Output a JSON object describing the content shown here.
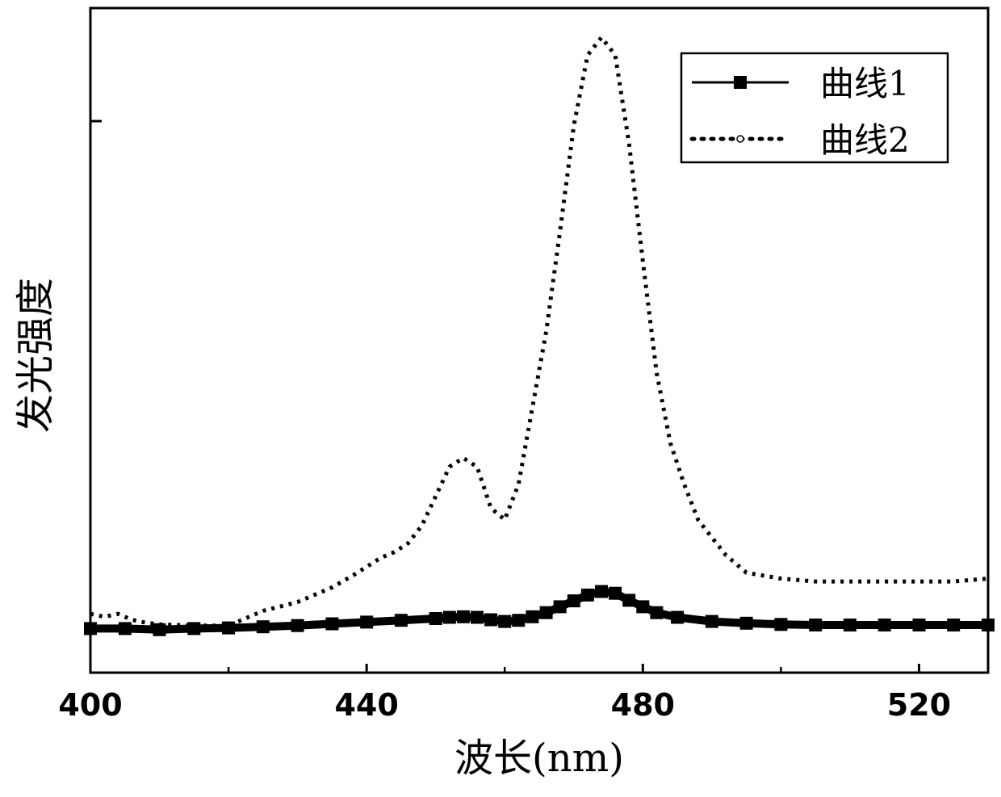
{
  "chart_data": {
    "type": "line",
    "title": "",
    "xlabel": "波长(nm)",
    "ylabel": "发光强度",
    "xlim": [
      400,
      530
    ],
    "ylim": [
      -0.08,
      1.05
    ],
    "x_ticks": [
      400,
      440,
      480,
      520
    ],
    "x_minor_ticks": [
      420,
      460,
      500
    ],
    "y_tick_labels_shown": false,
    "grid": false,
    "legend": {
      "position": "top-right"
    },
    "series": [
      {
        "name": "曲线1",
        "style": "solid line with filled square markers",
        "color": "#000000",
        "x": [
          400,
          405,
          410,
          415,
          420,
          425,
          430,
          435,
          440,
          445,
          450,
          452,
          454,
          456,
          458,
          460,
          462,
          464,
          466,
          468,
          470,
          472,
          474,
          476,
          478,
          480,
          482,
          485,
          490,
          495,
          500,
          505,
          510,
          515,
          520,
          525,
          530
        ],
        "y": [
          -0.005,
          -0.005,
          -0.007,
          -0.005,
          -0.004,
          -0.002,
          0.0,
          0.003,
          0.006,
          0.009,
          0.012,
          0.014,
          0.015,
          0.014,
          0.01,
          0.007,
          0.009,
          0.015,
          0.022,
          0.032,
          0.042,
          0.052,
          0.058,
          0.055,
          0.043,
          0.032,
          0.022,
          0.014,
          0.007,
          0.004,
          0.002,
          0.001,
          0.001,
          0.001,
          0.001,
          0.001,
          0.001
        ]
      },
      {
        "name": "曲线2",
        "style": "dotted line",
        "color": "#000000",
        "x": [
          400,
          402,
          404,
          406,
          408,
          410,
          415,
          420,
          422,
          425,
          430,
          435,
          438,
          440,
          442,
          444,
          446,
          448,
          450,
          452,
          454,
          456,
          458,
          460,
          462,
          464,
          466,
          468,
          470,
          472,
          474,
          476,
          478,
          480,
          482,
          484,
          486,
          488,
          490,
          492,
          495,
          500,
          505,
          510,
          515,
          520,
          525,
          530
        ],
        "y": [
          0.02,
          0.015,
          0.02,
          0.01,
          0.005,
          0.002,
          0.0,
          0.0,
          0.01,
          0.025,
          0.04,
          0.065,
          0.085,
          0.1,
          0.115,
          0.125,
          0.14,
          0.17,
          0.22,
          0.27,
          0.285,
          0.27,
          0.2,
          0.18,
          0.24,
          0.37,
          0.5,
          0.67,
          0.85,
          0.97,
          1.0,
          0.97,
          0.82,
          0.62,
          0.43,
          0.31,
          0.24,
          0.18,
          0.15,
          0.12,
          0.09,
          0.08,
          0.075,
          0.075,
          0.075,
          0.075,
          0.075,
          0.08
        ]
      }
    ]
  }
}
